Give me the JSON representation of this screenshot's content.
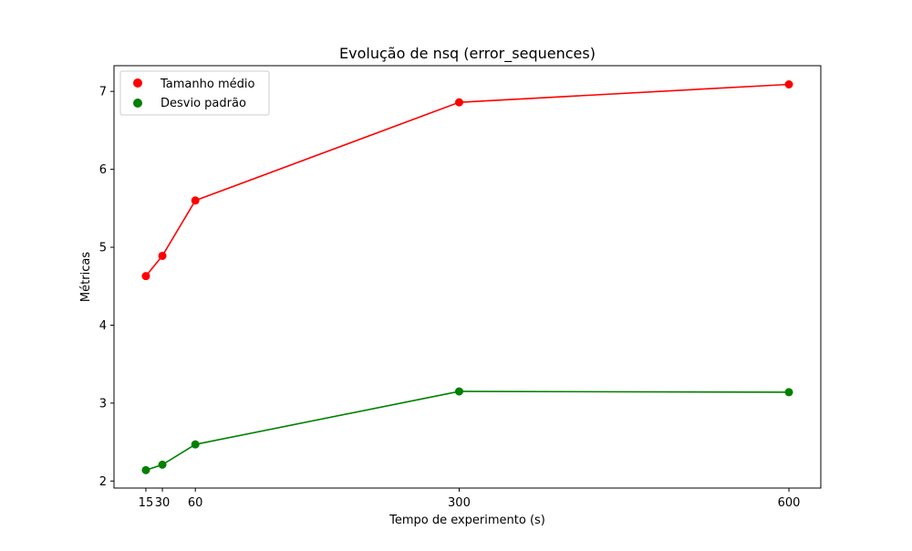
{
  "chart_data": {
    "type": "line",
    "title": "Evolução de nsq (error_sequences)",
    "xlabel": "Tempo de experimento (s)",
    "ylabel": "Métricas",
    "x": [
      15,
      30,
      60,
      300,
      600
    ],
    "x_ticks": [
      "15",
      "30",
      "60",
      "300",
      "600"
    ],
    "y_ticks": [
      "2",
      "3",
      "4",
      "5",
      "6",
      "7"
    ],
    "xlim": [
      -14,
      629
    ],
    "ylim": [
      1.91,
      7.33
    ],
    "grid": false,
    "legend_position": "top-left",
    "series": [
      {
        "name": "Tamanho médio",
        "color": "#ff0000",
        "values": [
          4.63,
          4.89,
          5.6,
          6.86,
          7.09
        ]
      },
      {
        "name": "Desvio padrão",
        "color": "#008000",
        "values": [
          2.14,
          2.21,
          2.47,
          3.15,
          3.14
        ]
      }
    ]
  }
}
